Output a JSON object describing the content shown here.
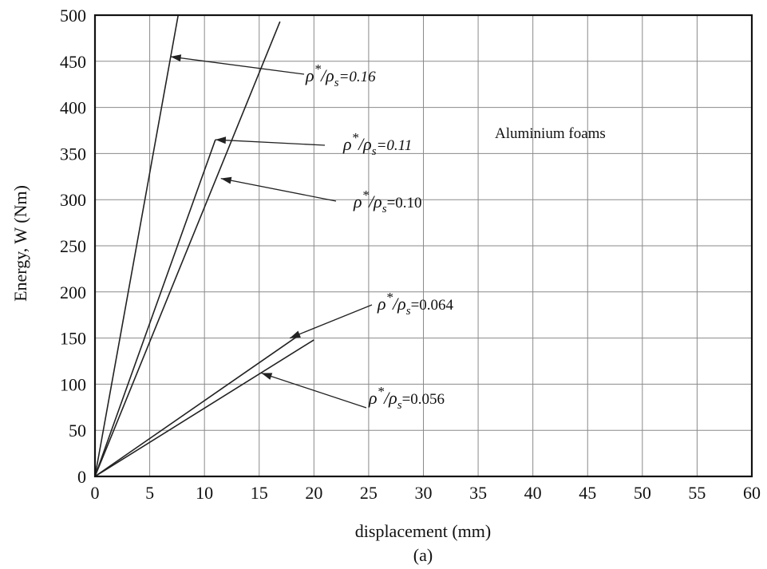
{
  "chart_data": {
    "type": "line",
    "xlabel": "displacement (mm)",
    "ylabel": "Energy, W (Nm)",
    "caption": "(a)",
    "xlim": [
      0,
      60
    ],
    "ylim": [
      0,
      500
    ],
    "xticks": [
      0,
      5,
      10,
      15,
      20,
      25,
      30,
      35,
      40,
      45,
      50,
      55,
      60
    ],
    "yticks": [
      0,
      50,
      100,
      150,
      200,
      250,
      300,
      350,
      400,
      450,
      500
    ],
    "grid": true,
    "series": [
      {
        "name": "ρ*/ρs=0.16",
        "x": [
          0,
          7.6
        ],
        "y": [
          0,
          500
        ]
      },
      {
        "name": "ρ*/ρs=0.11",
        "x": [
          0,
          11
        ],
        "y": [
          0,
          365
        ]
      },
      {
        "name": "ρ*/ρs=0.10",
        "x": [
          0,
          16.9
        ],
        "y": [
          0,
          493
        ]
      },
      {
        "name": "ρ*/ρs=0.064",
        "x": [
          0,
          18.5
        ],
        "y": [
          0,
          152
        ]
      },
      {
        "name": "ρ*/ρs=0.056",
        "x": [
          0,
          20
        ],
        "y": [
          0,
          148
        ]
      }
    ],
    "annotations": [
      {
        "text": "Aluminium foams"
      },
      {
        "prefix": "ρ",
        "sup": "*",
        "mid": "/ρ",
        "sub": "s",
        "suffix": "=0.16",
        "italic_value": true,
        "point": [
          6.9,
          455
        ]
      },
      {
        "prefix": "ρ",
        "sup": "*",
        "mid": "/ρ",
        "sub": "s",
        "suffix": "=0.11",
        "italic_value": true,
        "point": [
          11,
          365
        ]
      },
      {
        "prefix": "ρ",
        "sup": "*",
        "mid": "/ρ",
        "sub": "s",
        "suffix": "=0.10",
        "italic_value": false,
        "point": [
          11.5,
          323
        ]
      },
      {
        "prefix": "ρ",
        "sup": "*",
        "mid": "/ρ",
        "sub": "s",
        "suffix": "=0.064",
        "italic_value": false,
        "point": [
          17.8,
          150
        ]
      },
      {
        "prefix": "ρ",
        "sup": "*",
        "mid": "/ρ",
        "sub": "s",
        "suffix": "=0.056",
        "italic_value": false,
        "point": [
          15.2,
          112
        ]
      }
    ]
  }
}
